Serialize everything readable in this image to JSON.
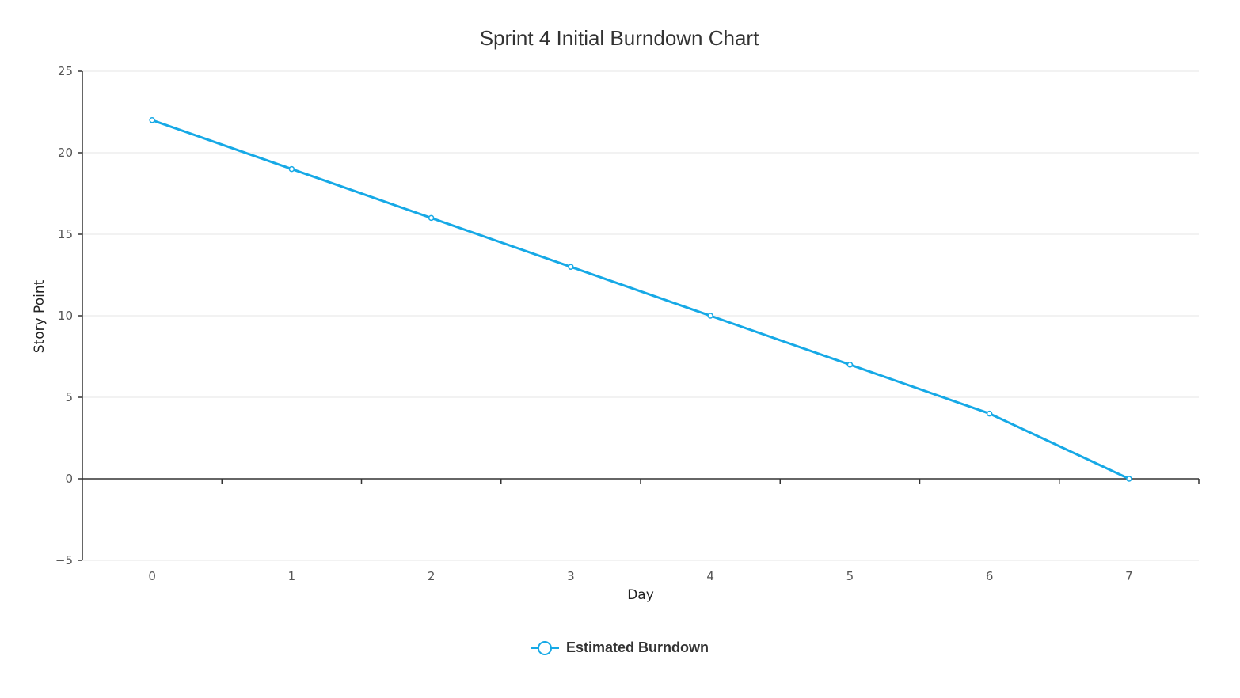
{
  "chart_data": {
    "type": "line",
    "title": "Sprint 4 Initial Burndown Chart",
    "xlabel": "Day",
    "ylabel": "Story Point",
    "categories": [
      "0",
      "1",
      "2",
      "3",
      "4",
      "5",
      "6",
      "7"
    ],
    "series": [
      {
        "name": "Estimated Burndown",
        "values": [
          22,
          19,
          16,
          13,
          10,
          7,
          4,
          0
        ],
        "color": "#16a9e6"
      }
    ],
    "ylim": [
      -5,
      25
    ],
    "yticks": [
      25,
      20,
      15,
      10,
      5,
      0,
      -5
    ],
    "ytick_labels": [
      "25",
      "20",
      "15",
      "10",
      "5",
      "0",
      "−5"
    ],
    "grid": true,
    "legend": {
      "position": "bottom-center"
    }
  }
}
